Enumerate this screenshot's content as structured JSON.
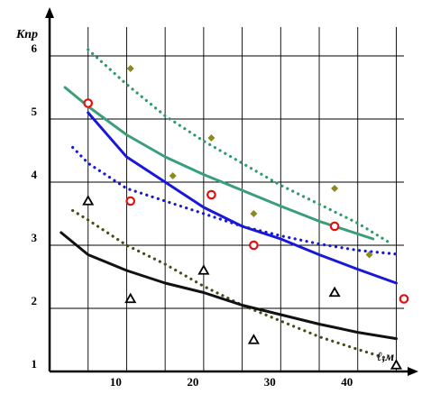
{
  "chart_data": {
    "type": "scatter",
    "title": "",
    "xlabel": "ℓ,м",
    "ylabel": "Kпр",
    "xlim": [
      0,
      46
    ],
    "ylim": [
      1,
      6.6
    ],
    "x_ticks": [
      10,
      20,
      30,
      40
    ],
    "x_tick_labels": [
      "10",
      "20",
      "30",
      "40"
    ],
    "y_ticks": [
      1,
      2,
      3,
      4,
      5,
      6
    ],
    "y_tick_labels": [
      "1",
      "2",
      "3",
      "4",
      "5",
      "6"
    ],
    "x_grid": [
      5,
      10,
      15,
      20,
      25,
      30,
      35,
      40,
      45
    ],
    "grid": true,
    "legend": "none",
    "series": [
      {
        "style": "line",
        "dash": "dot",
        "color": "#2E9A6A",
        "x": [
          5,
          10,
          15,
          20,
          25,
          30,
          35,
          40,
          44
        ],
        "y": [
          6.1,
          5.55,
          5.05,
          4.65,
          4.3,
          3.95,
          3.65,
          3.35,
          3.05
        ]
      },
      {
        "style": "line",
        "dash": "solid",
        "color": "#3A9F78",
        "x": [
          2,
          5,
          10,
          15,
          20,
          25,
          30,
          35,
          42
        ],
        "y": [
          5.5,
          5.2,
          4.75,
          4.4,
          4.12,
          3.87,
          3.62,
          3.38,
          3.1
        ]
      },
      {
        "style": "line",
        "dash": "solid",
        "color": "#1818D8",
        "x": [
          5,
          10,
          15,
          20,
          25,
          30,
          35,
          40,
          45
        ],
        "y": [
          5.1,
          4.4,
          4.0,
          3.6,
          3.3,
          3.1,
          2.85,
          2.62,
          2.4
        ]
      },
      {
        "style": "line",
        "dash": "dot",
        "color": "#1818D8",
        "x": [
          3,
          5,
          10,
          15,
          20,
          25,
          30,
          35,
          40,
          45
        ],
        "y": [
          4.55,
          4.3,
          3.9,
          3.7,
          3.5,
          3.3,
          3.15,
          3.02,
          2.92,
          2.86
        ]
      },
      {
        "style": "line",
        "dash": "dot",
        "color": "#4A4A1A",
        "x": [
          3,
          5,
          10,
          15,
          20,
          25,
          30,
          35,
          40,
          44
        ],
        "y": [
          3.55,
          3.4,
          3.0,
          2.7,
          2.35,
          2.05,
          1.8,
          1.55,
          1.35,
          1.2
        ]
      },
      {
        "style": "line",
        "dash": "solid",
        "color": "#111111",
        "x": [
          1.5,
          5,
          10,
          15,
          20,
          25,
          30,
          35,
          40,
          45
        ],
        "y": [
          3.2,
          2.85,
          2.6,
          2.4,
          2.25,
          2.05,
          1.9,
          1.75,
          1.62,
          1.52
        ]
      },
      {
        "style": "points",
        "marker": "diamond",
        "color": "#8A8A20",
        "x": [
          10.5,
          16,
          21,
          26.5,
          37,
          41.5
        ],
        "y": [
          5.8,
          4.1,
          4.7,
          3.5,
          3.9,
          2.85
        ]
      },
      {
        "style": "points",
        "marker": "circle",
        "color": "#E01010",
        "x": [
          5,
          10.5,
          21,
          26.5,
          37,
          46
        ],
        "y": [
          5.25,
          3.7,
          3.8,
          3.0,
          3.3,
          2.15
        ]
      },
      {
        "style": "points",
        "marker": "triangle",
        "color": "#000000",
        "x": [
          5,
          10.5,
          20,
          26.5,
          37,
          45
        ],
        "y": [
          3.7,
          2.15,
          2.6,
          1.5,
          2.25,
          1.1
        ]
      }
    ]
  }
}
